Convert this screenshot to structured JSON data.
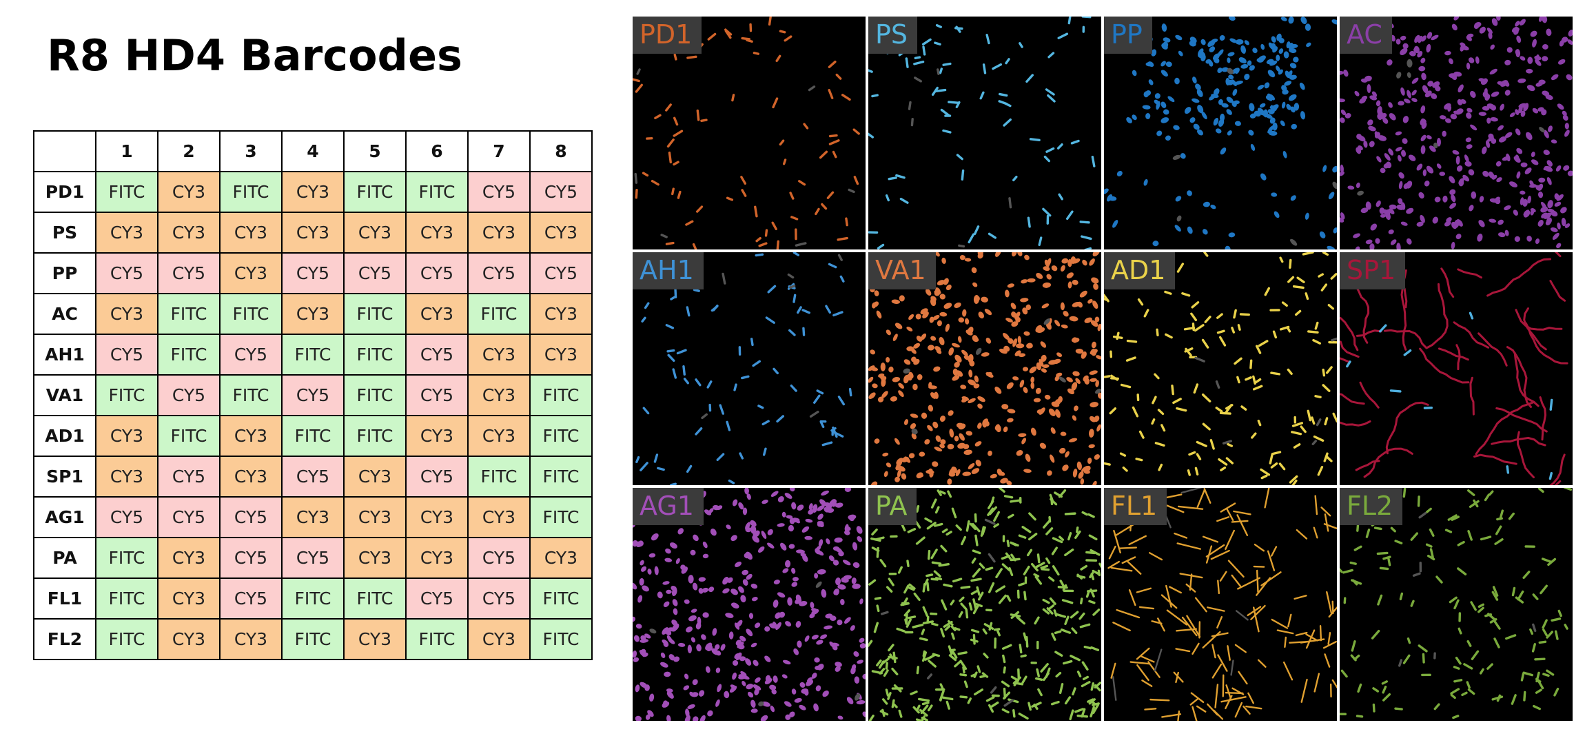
{
  "title": "R8 HD4 Barcodes",
  "table": {
    "columns": [
      "1",
      "2",
      "3",
      "4",
      "5",
      "6",
      "7",
      "8"
    ],
    "rows": [
      {
        "label": "PD1",
        "codes": [
          "FITC",
          "CY3",
          "FITC",
          "CY3",
          "FITC",
          "FITC",
          "CY5",
          "CY5"
        ]
      },
      {
        "label": "PS",
        "codes": [
          "CY3",
          "CY3",
          "CY3",
          "CY3",
          "CY3",
          "CY3",
          "CY3",
          "CY3"
        ]
      },
      {
        "label": "PP",
        "codes": [
          "CY5",
          "CY5",
          "CY3",
          "CY5",
          "CY5",
          "CY5",
          "CY5",
          "CY5"
        ]
      },
      {
        "label": "AC",
        "codes": [
          "CY3",
          "FITC",
          "FITC",
          "CY3",
          "FITC",
          "CY3",
          "FITC",
          "CY3"
        ]
      },
      {
        "label": "AH1",
        "codes": [
          "CY5",
          "FITC",
          "CY5",
          "FITC",
          "FITC",
          "CY5",
          "CY3",
          "CY3"
        ]
      },
      {
        "label": "VA1",
        "codes": [
          "FITC",
          "CY5",
          "FITC",
          "CY5",
          "FITC",
          "CY5",
          "CY3",
          "FITC"
        ]
      },
      {
        "label": "AD1",
        "codes": [
          "CY3",
          "FITC",
          "CY3",
          "FITC",
          "FITC",
          "CY3",
          "CY3",
          "FITC"
        ]
      },
      {
        "label": "SP1",
        "codes": [
          "CY3",
          "CY5",
          "CY3",
          "CY5",
          "CY3",
          "CY5",
          "FITC",
          "FITC"
        ]
      },
      {
        "label": "AG1",
        "codes": [
          "CY5",
          "CY5",
          "CY5",
          "CY3",
          "CY3",
          "CY3",
          "CY3",
          "FITC"
        ]
      },
      {
        "label": "PA",
        "codes": [
          "FITC",
          "CY3",
          "CY5",
          "CY5",
          "CY3",
          "CY3",
          "CY5",
          "CY3"
        ]
      },
      {
        "label": "FL1",
        "codes": [
          "FITC",
          "CY3",
          "CY5",
          "FITC",
          "FITC",
          "CY5",
          "CY5",
          "FITC"
        ]
      },
      {
        "label": "FL2",
        "codes": [
          "FITC",
          "CY3",
          "CY3",
          "FITC",
          "CY3",
          "FITC",
          "CY3",
          "FITC"
        ]
      }
    ]
  },
  "colors": {
    "FITC": "#ccf7c9",
    "CY3": "#fbcb96",
    "CY5": "#fccfcf"
  },
  "panels": [
    {
      "label": "PD1",
      "color": "#d2642a",
      "density": "sparse",
      "shape": "rod"
    },
    {
      "label": "PS",
      "color": "#54b6e0",
      "density": "sparse",
      "shape": "rod"
    },
    {
      "label": "PP",
      "color": "#1f77c4",
      "density": "cluster",
      "shape": "blob"
    },
    {
      "label": "AC",
      "color": "#8b3fa8",
      "density": "dense",
      "shape": "blob"
    },
    {
      "label": "AH1",
      "color": "#3f92d6",
      "density": "sparse",
      "shape": "rod"
    },
    {
      "label": "VA1",
      "color": "#e07840",
      "density": "dense",
      "shape": "blob"
    },
    {
      "label": "AD1",
      "color": "#ead24a",
      "density": "medium",
      "shape": "rod"
    },
    {
      "label": "SP1",
      "color": "#a8163a",
      "density": "chain",
      "shape": "chain"
    },
    {
      "label": "AG1",
      "color": "#a24fb8",
      "density": "dense",
      "shape": "blob"
    },
    {
      "label": "PA",
      "color": "#8fc34f",
      "density": "dense",
      "shape": "rod"
    },
    {
      "label": "FL1",
      "color": "#e0a030",
      "density": "medium",
      "shape": "longrod"
    },
    {
      "label": "FL2",
      "color": "#7aaa3c",
      "density": "medium",
      "shape": "rod"
    }
  ]
}
